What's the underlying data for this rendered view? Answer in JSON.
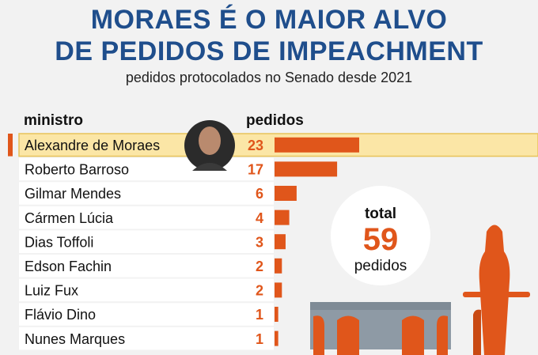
{
  "title_line1": "MORAES É O MAIOR ALVO",
  "title_line2": "DE PEDIDOS DE IMPEACHMENT",
  "subtitle": "pedidos protocolados no Senado desde 2021",
  "column_ministro": "ministro",
  "column_pedidos": "pedidos",
  "total": {
    "label": "total",
    "value": "59",
    "unit": "pedidos"
  },
  "colors": {
    "accent": "#e0561b",
    "title": "#1f4e8c",
    "highlight": "#fbe6a6",
    "avatar_bg": "#2b2b2b"
  },
  "chart_data": {
    "type": "bar",
    "orientation": "horizontal",
    "categories": [
      "Alexandre de Moraes",
      "Roberto Barroso",
      "Gilmar Mendes",
      "Cármen Lúcia",
      "Dias Toffoli",
      "Edson Fachin",
      "Luiz Fux",
      "Flávio Dino",
      "Nunes Marques"
    ],
    "values": [
      23,
      17,
      6,
      4,
      3,
      2,
      2,
      1,
      1
    ],
    "highlight_index": 0
  }
}
